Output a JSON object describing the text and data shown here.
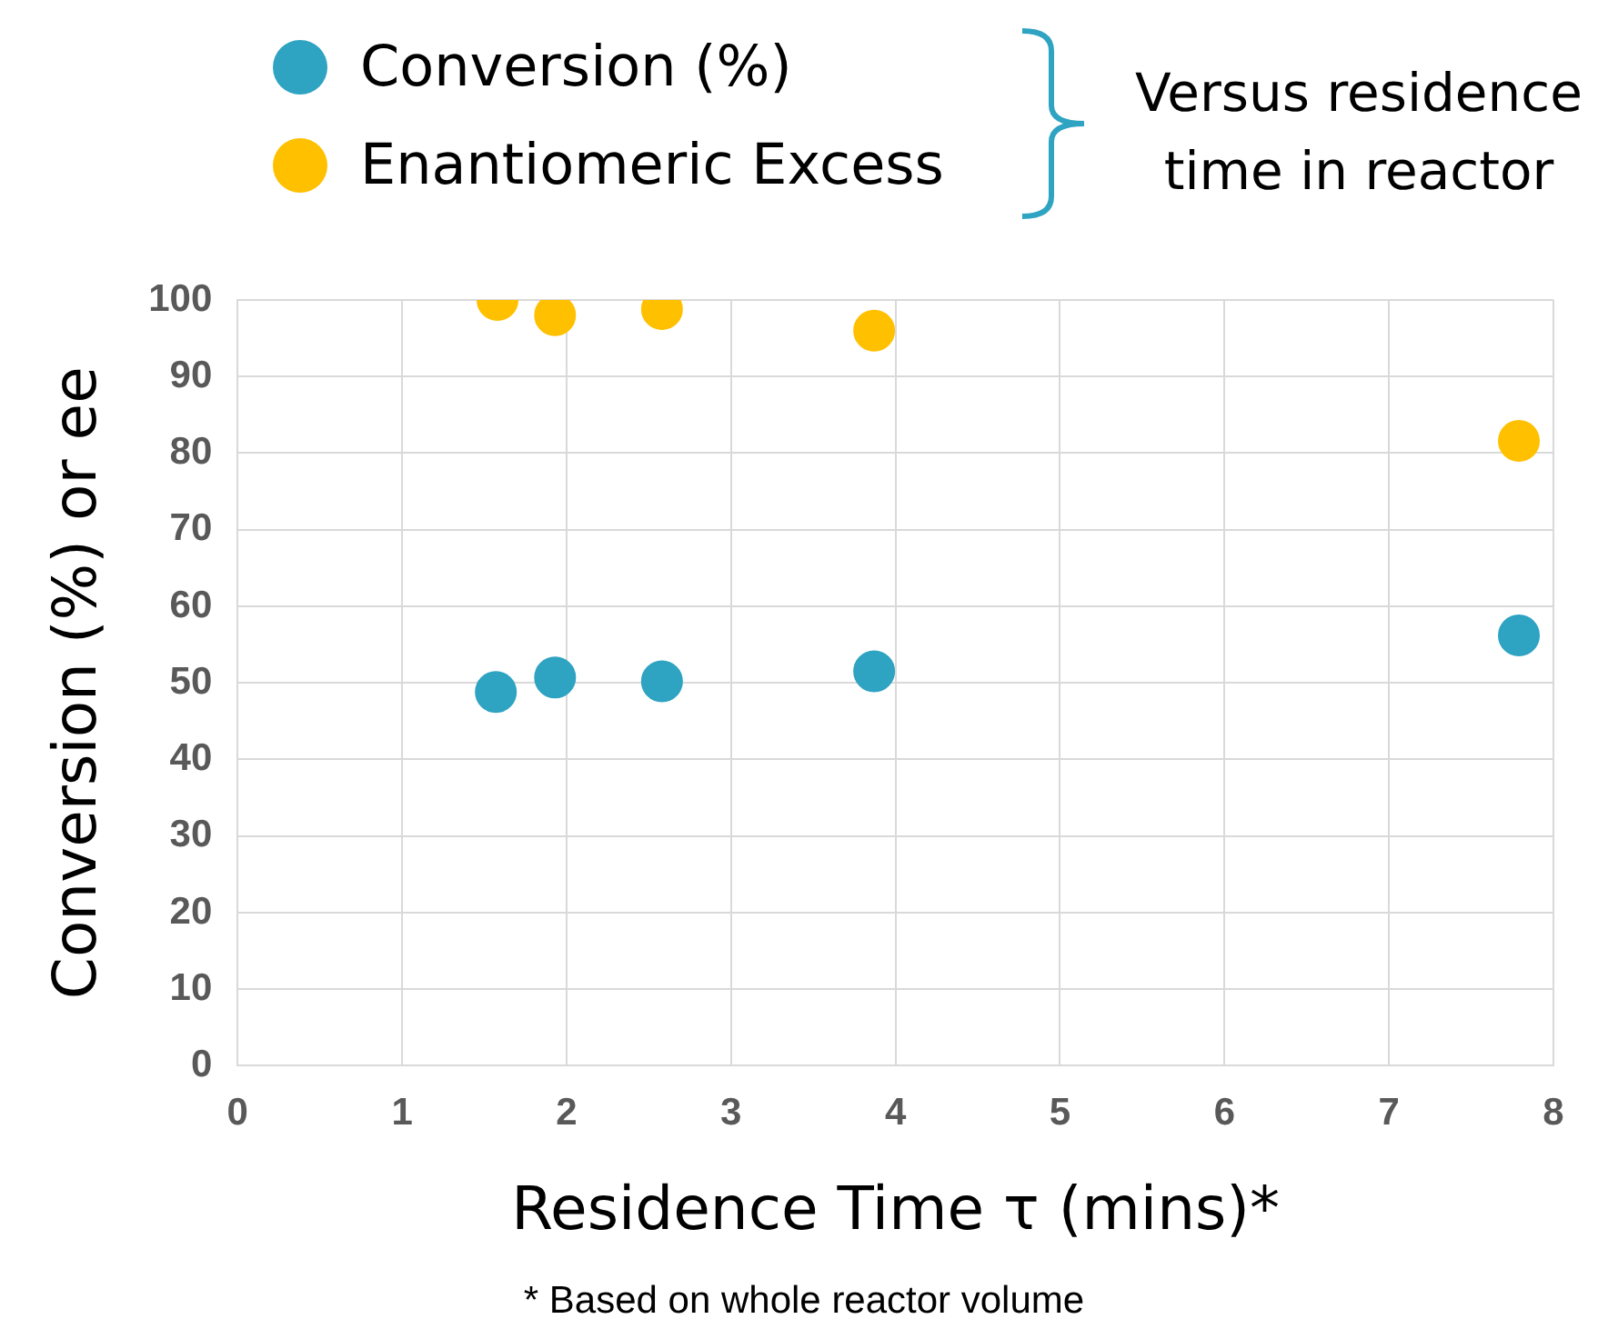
{
  "chart_data": {
    "type": "scatter",
    "xlabel": "Residence Time τ (mins)*",
    "ylabel": "Conversion (%) or ee",
    "series": [
      {
        "name": "Conversion (%)",
        "color": "#2ea3c2",
        "x": [
          1.57,
          1.93,
          2.58,
          3.87,
          7.79
        ],
        "values": [
          48.8,
          50.7,
          50.2,
          51.5,
          56.2
        ]
      },
      {
        "name": "Enantiomeric Excess",
        "color": "#ffc000",
        "x": [
          1.58,
          1.93,
          2.58,
          3.87,
          7.79
        ],
        "values": [
          100,
          98,
          98.8,
          96,
          81.6
        ]
      }
    ],
    "xlim": [
      0,
      8
    ],
    "xticks": [
      0,
      1,
      2,
      3,
      4,
      5,
      6,
      7,
      8
    ],
    "ylim": [
      0,
      100
    ],
    "yticks": [
      0,
      10,
      20,
      30,
      40,
      50,
      60,
      70,
      80,
      90,
      100
    ],
    "grid": true,
    "legend": "top left",
    "marker": "circle",
    "annotations": [
      "Versus residence time in reactor",
      "* Based on whole reactor volume"
    ]
  }
}
